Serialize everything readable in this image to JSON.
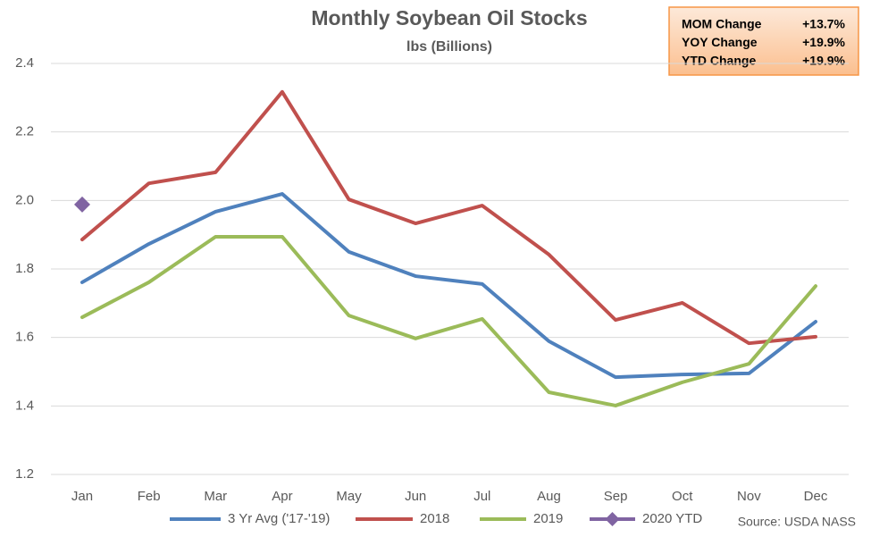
{
  "chart_data": {
    "type": "line",
    "title": "Monthly Soybean Oil Stocks",
    "subtitle": "lbs (Billions)",
    "categories": [
      "Jan",
      "Feb",
      "Mar",
      "Apr",
      "May",
      "Jun",
      "Jul",
      "Aug",
      "Sep",
      "Oct",
      "Nov",
      "Dec"
    ],
    "series": [
      {
        "name": "3 Yr Avg ('17-'19)",
        "color": "#4f81bd",
        "values": [
          1.761,
          1.873,
          1.967,
          2.019,
          1.85,
          1.779,
          1.756,
          1.589,
          1.484,
          1.492,
          1.495,
          1.646
        ]
      },
      {
        "name": "2018",
        "color": "#c0504d",
        "values": [
          1.886,
          2.05,
          2.082,
          2.317,
          2.003,
          1.933,
          1.985,
          1.842,
          1.651,
          1.701,
          1.583,
          1.602
        ]
      },
      {
        "name": "2019",
        "color": "#9bbb59",
        "values": [
          1.659,
          1.761,
          1.894,
          1.894,
          1.664,
          1.597,
          1.654,
          1.44,
          1.401,
          1.469,
          1.523,
          1.75
        ]
      },
      {
        "name": "2020 YTD",
        "color": "#8064a2",
        "marker": "diamond",
        "values": [
          1.988,
          null,
          null,
          null,
          null,
          null,
          null,
          null,
          null,
          null,
          null,
          null
        ]
      }
    ],
    "ylim": [
      1.2,
      2.4
    ],
    "yticks": [
      1.2,
      1.4,
      1.6,
      1.8,
      {
        "value": 2,
        "label": "2.0"
      },
      2.2,
      2.4
    ],
    "grid": true,
    "legend": "bottom",
    "info_box": [
      {
        "label": "MOM Change",
        "value": "+13.7%"
      },
      {
        "label": "YOY Change",
        "value": "+19.9%"
      },
      {
        "label": "YTD Change",
        "value": "+19.9%"
      }
    ],
    "source": "Source: USDA NASS"
  }
}
